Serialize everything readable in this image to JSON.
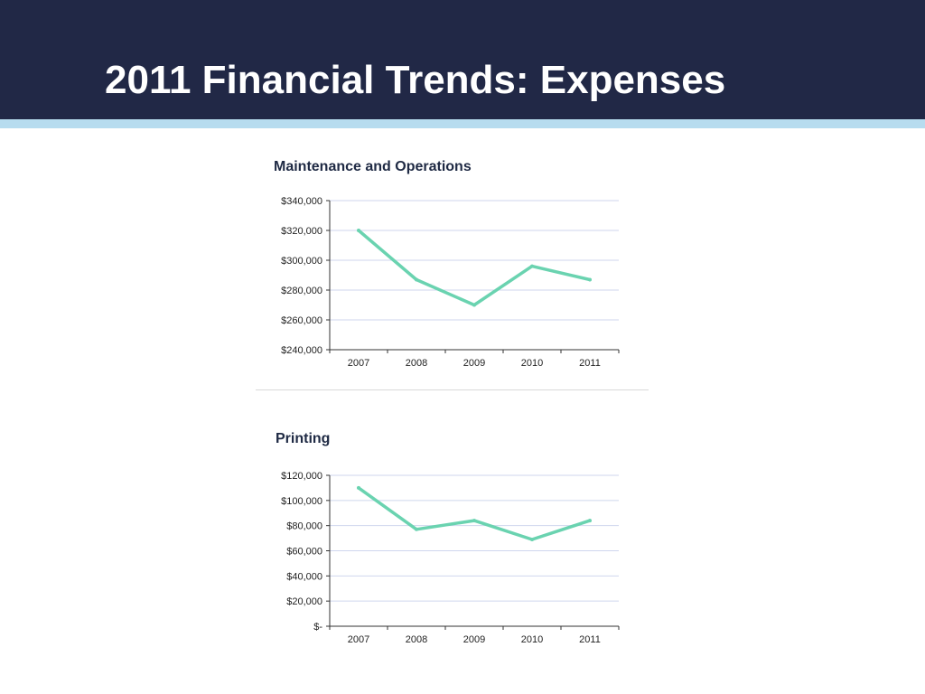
{
  "slide": {
    "title": "2011 Financial Trends: Expenses",
    "colors": {
      "header_bg": "#212846",
      "accent_strip": "#b7dcef",
      "line": "#6ad3b0"
    }
  },
  "chart_data": [
    {
      "type": "line",
      "title": "Maintenance and Operations",
      "categories": [
        "2007",
        "2008",
        "2009",
        "2010",
        "2011"
      ],
      "values": [
        320000,
        287000,
        270000,
        296000,
        287000
      ],
      "ylim": [
        240000,
        340000
      ],
      "yticks": [
        "$240,000",
        "$260,000",
        "$280,000",
        "$300,000",
        "$320,000",
        "$340,000"
      ],
      "xlabel": "",
      "ylabel": "",
      "grid": true
    },
    {
      "type": "line",
      "title": "Printing",
      "categories": [
        "2007",
        "2008",
        "2009",
        "2010",
        "2011"
      ],
      "values": [
        110000,
        77000,
        84000,
        69000,
        84000
      ],
      "ylim": [
        0,
        120000
      ],
      "yticks": [
        "$-",
        "$20,000",
        "$40,000",
        "$60,000",
        "$80,000",
        "$100,000",
        "$120,000"
      ],
      "xlabel": "",
      "ylabel": "",
      "grid": true
    }
  ]
}
